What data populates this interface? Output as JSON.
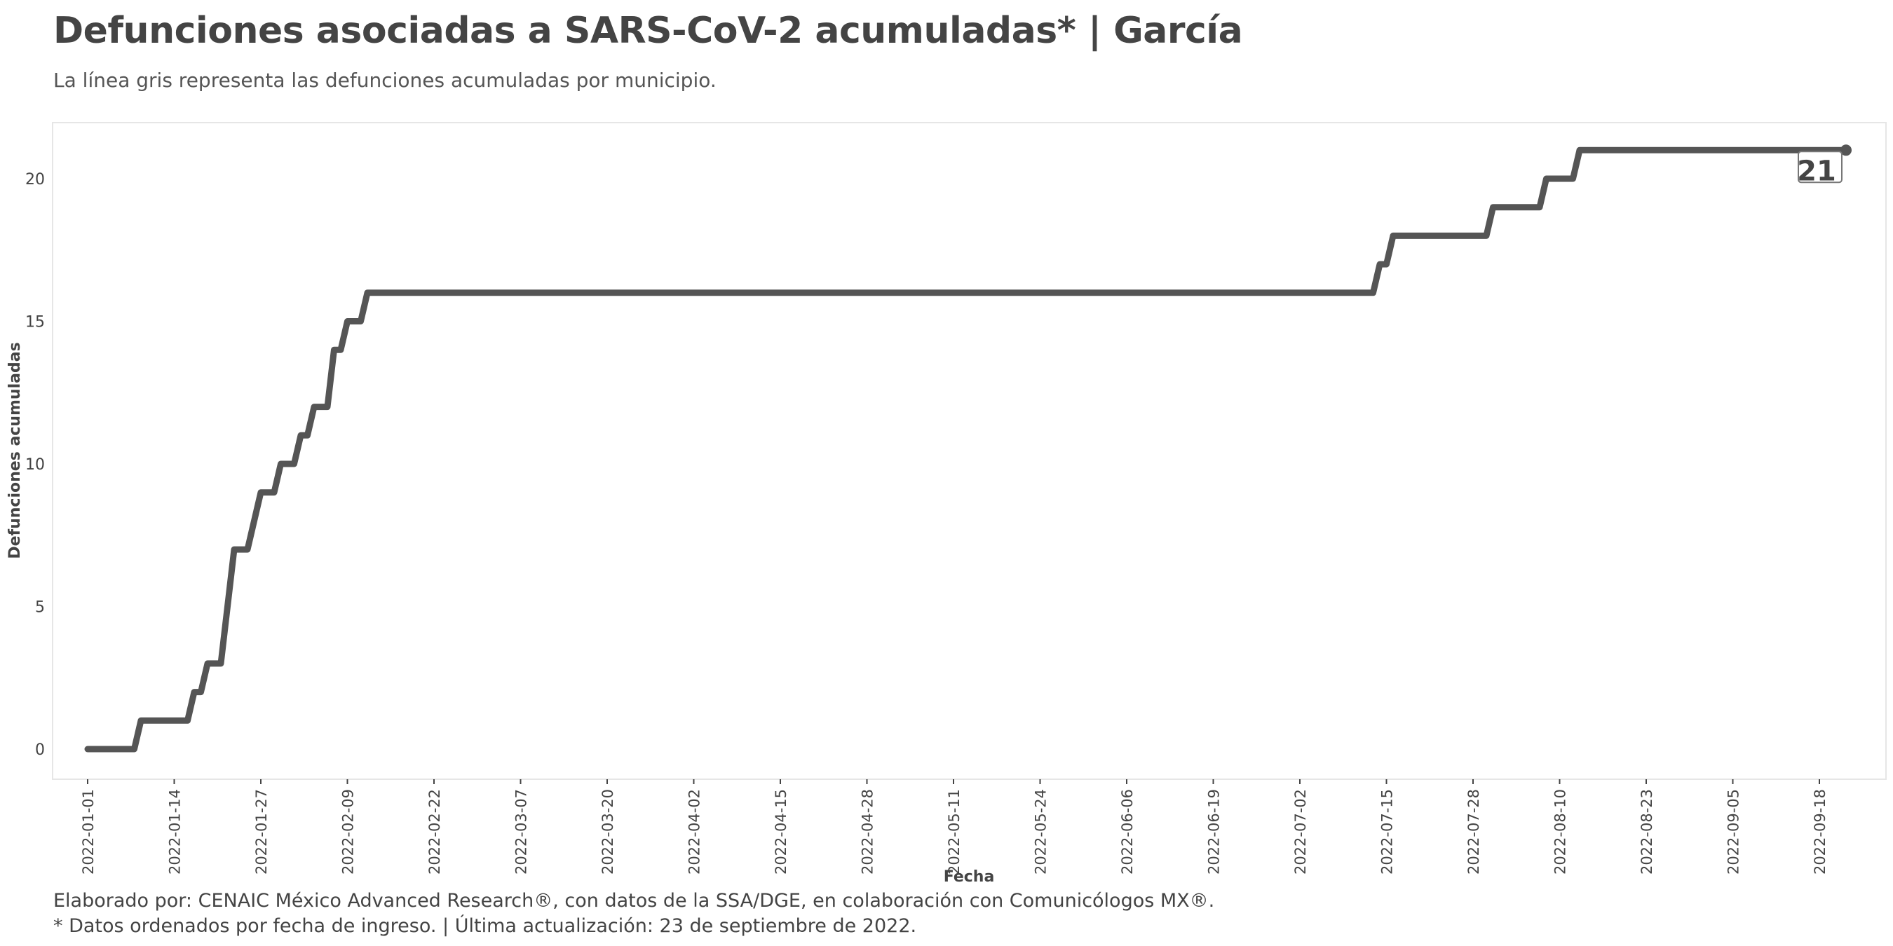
{
  "header": {
    "title": "Defunciones asociadas a SARS-CoV-2 acumuladas* | García",
    "subtitle": "La línea gris representa las defunciones acumuladas por municipio."
  },
  "footer": {
    "caption_line1": "Elaborado por: CENAIC México Advanced Research®, con datos de la SSA/DGE, en colaboración con Comunicólogos MX®.",
    "caption_line2": "* Datos ordenados por fecha de ingreso. | Última actualización: 23 de septiembre de 2022."
  },
  "chart_data": {
    "type": "line",
    "xlabel": "Fecha",
    "ylabel": "Defunciones acumuladas",
    "x_start": "2022-01-01",
    "x_end": "2022-09-22",
    "ylim": [
      -1,
      22
    ],
    "y_ticks": [
      0,
      5,
      10,
      15,
      20
    ],
    "x_ticks": [
      "2022-01-01",
      "2022-01-14",
      "2022-01-27",
      "2022-02-09",
      "2022-02-22",
      "2022-03-07",
      "2022-03-20",
      "2022-04-02",
      "2022-04-15",
      "2022-04-28",
      "2022-05-11",
      "2022-05-24",
      "2022-06-06",
      "2022-06-19",
      "2022-07-02",
      "2022-07-15",
      "2022-07-28",
      "2022-08-10",
      "2022-08-23",
      "2022-09-05",
      "2022-09-18"
    ],
    "grid": false,
    "line_color": "#555555",
    "series": [
      {
        "points": [
          [
            "2022-01-01",
            0
          ],
          [
            "2022-01-08",
            0
          ],
          [
            "2022-01-09",
            1
          ],
          [
            "2022-01-16",
            1
          ],
          [
            "2022-01-17",
            2
          ],
          [
            "2022-01-18",
            2
          ],
          [
            "2022-01-19",
            3
          ],
          [
            "2022-01-21",
            3
          ],
          [
            "2022-01-23",
            7
          ],
          [
            "2022-01-25",
            7
          ],
          [
            "2022-01-27",
            9
          ],
          [
            "2022-01-29",
            9
          ],
          [
            "2022-01-30",
            10
          ],
          [
            "2022-02-01",
            10
          ],
          [
            "2022-02-02",
            11
          ],
          [
            "2022-02-03",
            11
          ],
          [
            "2022-02-04",
            12
          ],
          [
            "2022-02-06",
            12
          ],
          [
            "2022-02-07",
            14
          ],
          [
            "2022-02-08",
            14
          ],
          [
            "2022-02-09",
            15
          ],
          [
            "2022-02-11",
            15
          ],
          [
            "2022-02-12",
            16
          ],
          [
            "2022-07-13",
            16
          ],
          [
            "2022-07-14",
            17
          ],
          [
            "2022-07-15",
            17
          ],
          [
            "2022-07-16",
            18
          ],
          [
            "2022-07-30",
            18
          ],
          [
            "2022-07-31",
            19
          ],
          [
            "2022-08-07",
            19
          ],
          [
            "2022-08-08",
            20
          ],
          [
            "2022-08-12",
            20
          ],
          [
            "2022-08-13",
            21
          ],
          [
            "2022-09-22",
            21
          ]
        ]
      }
    ],
    "last_value_label": "21"
  }
}
